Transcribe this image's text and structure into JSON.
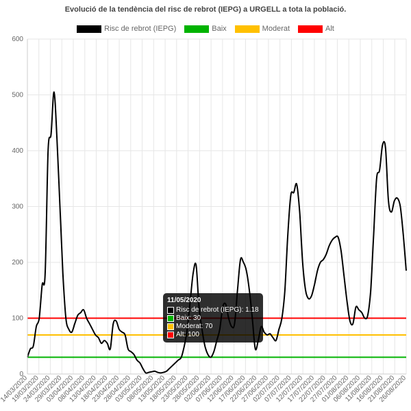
{
  "chart_data": {
    "type": "line",
    "title": "Evolució de la tendència del risc de rebrot (IEPG) a URGELL a tota la població.",
    "ylim": [
      0,
      600
    ],
    "yticks": [
      0,
      100,
      200,
      300,
      400,
      500,
      600
    ],
    "grid": true,
    "legend_position": "top",
    "xticks": [
      "14/03/2020",
      "19/03/2020",
      "24/03/2020",
      "29/03/2020",
      "03/04/2020",
      "08/04/2020",
      "13/04/2020",
      "18/04/2020",
      "23/04/2020",
      "28/04/2020",
      "03/05/2020",
      "08/05/2020",
      "13/05/2020",
      "18/05/2020",
      "23/05/2020",
      "28/05/2020",
      "02/06/2020",
      "07/06/2020",
      "12/06/2020",
      "17/06/2020",
      "22/06/2020",
      "27/06/2020",
      "02/07/2020",
      "07/07/2020",
      "12/07/2020",
      "17/07/2020",
      "22/07/2020",
      "27/07/2020",
      "01/08/2020",
      "06/08/2020",
      "11/08/2020",
      "16/08/2020",
      "21/08/2020",
      "26/08/2020"
    ],
    "x_start": "14/03/2020",
    "series": [
      {
        "name": "Risc de rebrot (IEPG)",
        "color": "#000000",
        "values": [
          30,
          45,
          50,
          85,
          100,
          160,
          180,
          400,
          430,
          505,
          420,
          300,
          180,
          100,
          80,
          75,
          90,
          105,
          110,
          115,
          100,
          90,
          80,
          70,
          65,
          55,
          60,
          55,
          45,
          90,
          95,
          80,
          75,
          70,
          45,
          40,
          35,
          25,
          20,
          10,
          2,
          3,
          4,
          5,
          3,
          2,
          3,
          5,
          10,
          15,
          20,
          25,
          30,
          50,
          80,
          130,
          180,
          195,
          120,
          80,
          50,
          35,
          30,
          40,
          60,
          80,
          120,
          125,
          100,
          85,
          90,
          150,
          205,
          200,
          185,
          150,
          100,
          45,
          60,
          85,
          75,
          70,
          72,
          65,
          60,
          80,
          100,
          150,
          250,
          320,
          325,
          340,
          290,
          200,
          150,
          135,
          140,
          160,
          185,
          200,
          205,
          215,
          230,
          240,
          245,
          245,
          220,
          175,
          130,
          95,
          90,
          120,
          115,
          110,
          100,
          105,
          150,
          250,
          350,
          365,
          410,
          405,
          310,
          290,
          310,
          315,
          300,
          250,
          185
        ],
        "annotation": "Risc de rebrot (IEPG): 1.18"
      },
      {
        "name": "Baix",
        "color": "#00b300",
        "constant": 30
      },
      {
        "name": "Moderat",
        "color": "#ffc000",
        "constant": 70
      },
      {
        "name": "Alt",
        "color": "#ff0000",
        "constant": 100
      }
    ],
    "tooltip": {
      "title": "11/05/2020",
      "rows": [
        {
          "label": "Risc de rebrot (IEPG): 1.18",
          "color": "#000000"
        },
        {
          "label": "Baix: 30",
          "color": "#00b300"
        },
        {
          "label": "Moderat: 70",
          "color": "#ffc000"
        },
        {
          "label": "Alt: 100",
          "color": "#ff0000"
        }
      ]
    }
  }
}
